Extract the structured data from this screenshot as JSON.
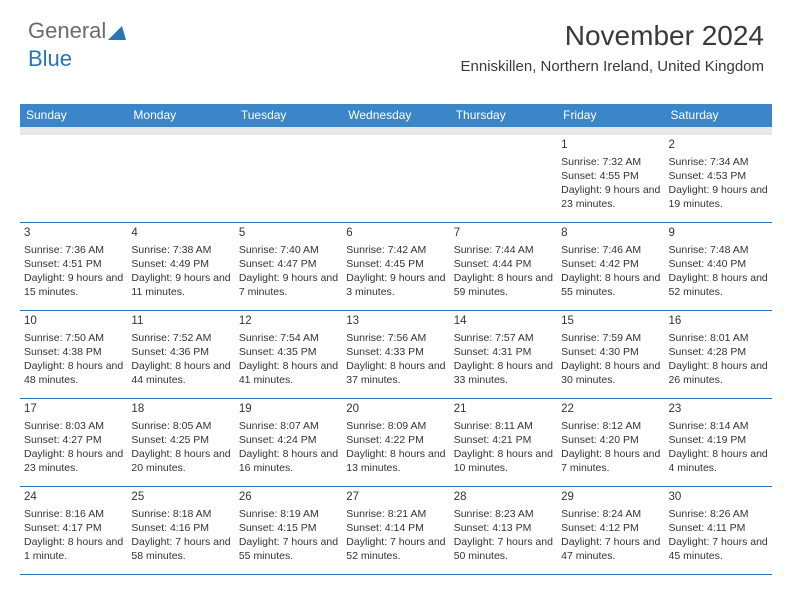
{
  "logo": {
    "text1": "General",
    "text2": "Blue"
  },
  "header": {
    "title": "November 2024",
    "subtitle": "Enniskillen, Northern Ireland, United Kingdom"
  },
  "colors": {
    "header_bg": "#3a86c8",
    "header_text": "#ffffff",
    "divider": "#2a74b8",
    "gap_bg": "#e7e7e7",
    "body_text": "#333333",
    "logo_gray": "#6b6b6b",
    "logo_blue": "#2a74b8"
  },
  "dow": [
    "Sunday",
    "Monday",
    "Tuesday",
    "Wednesday",
    "Thursday",
    "Friday",
    "Saturday"
  ],
  "weeks": [
    [
      null,
      null,
      null,
      null,
      null,
      {
        "n": "1",
        "sr": "7:32 AM",
        "ss": "4:55 PM",
        "dl": "9 hours and 23 minutes."
      },
      {
        "n": "2",
        "sr": "7:34 AM",
        "ss": "4:53 PM",
        "dl": "9 hours and 19 minutes."
      }
    ],
    [
      {
        "n": "3",
        "sr": "7:36 AM",
        "ss": "4:51 PM",
        "dl": "9 hours and 15 minutes."
      },
      {
        "n": "4",
        "sr": "7:38 AM",
        "ss": "4:49 PM",
        "dl": "9 hours and 11 minutes."
      },
      {
        "n": "5",
        "sr": "7:40 AM",
        "ss": "4:47 PM",
        "dl": "9 hours and 7 minutes."
      },
      {
        "n": "6",
        "sr": "7:42 AM",
        "ss": "4:45 PM",
        "dl": "9 hours and 3 minutes."
      },
      {
        "n": "7",
        "sr": "7:44 AM",
        "ss": "4:44 PM",
        "dl": "8 hours and 59 minutes."
      },
      {
        "n": "8",
        "sr": "7:46 AM",
        "ss": "4:42 PM",
        "dl": "8 hours and 55 minutes."
      },
      {
        "n": "9",
        "sr": "7:48 AM",
        "ss": "4:40 PM",
        "dl": "8 hours and 52 minutes."
      }
    ],
    [
      {
        "n": "10",
        "sr": "7:50 AM",
        "ss": "4:38 PM",
        "dl": "8 hours and 48 minutes."
      },
      {
        "n": "11",
        "sr": "7:52 AM",
        "ss": "4:36 PM",
        "dl": "8 hours and 44 minutes."
      },
      {
        "n": "12",
        "sr": "7:54 AM",
        "ss": "4:35 PM",
        "dl": "8 hours and 41 minutes."
      },
      {
        "n": "13",
        "sr": "7:56 AM",
        "ss": "4:33 PM",
        "dl": "8 hours and 37 minutes."
      },
      {
        "n": "14",
        "sr": "7:57 AM",
        "ss": "4:31 PM",
        "dl": "8 hours and 33 minutes."
      },
      {
        "n": "15",
        "sr": "7:59 AM",
        "ss": "4:30 PM",
        "dl": "8 hours and 30 minutes."
      },
      {
        "n": "16",
        "sr": "8:01 AM",
        "ss": "4:28 PM",
        "dl": "8 hours and 26 minutes."
      }
    ],
    [
      {
        "n": "17",
        "sr": "8:03 AM",
        "ss": "4:27 PM",
        "dl": "8 hours and 23 minutes."
      },
      {
        "n": "18",
        "sr": "8:05 AM",
        "ss": "4:25 PM",
        "dl": "8 hours and 20 minutes."
      },
      {
        "n": "19",
        "sr": "8:07 AM",
        "ss": "4:24 PM",
        "dl": "8 hours and 16 minutes."
      },
      {
        "n": "20",
        "sr": "8:09 AM",
        "ss": "4:22 PM",
        "dl": "8 hours and 13 minutes."
      },
      {
        "n": "21",
        "sr": "8:11 AM",
        "ss": "4:21 PM",
        "dl": "8 hours and 10 minutes."
      },
      {
        "n": "22",
        "sr": "8:12 AM",
        "ss": "4:20 PM",
        "dl": "8 hours and 7 minutes."
      },
      {
        "n": "23",
        "sr": "8:14 AM",
        "ss": "4:19 PM",
        "dl": "8 hours and 4 minutes."
      }
    ],
    [
      {
        "n": "24",
        "sr": "8:16 AM",
        "ss": "4:17 PM",
        "dl": "8 hours and 1 minute."
      },
      {
        "n": "25",
        "sr": "8:18 AM",
        "ss": "4:16 PM",
        "dl": "7 hours and 58 minutes."
      },
      {
        "n": "26",
        "sr": "8:19 AM",
        "ss": "4:15 PM",
        "dl": "7 hours and 55 minutes."
      },
      {
        "n": "27",
        "sr": "8:21 AM",
        "ss": "4:14 PM",
        "dl": "7 hours and 52 minutes."
      },
      {
        "n": "28",
        "sr": "8:23 AM",
        "ss": "4:13 PM",
        "dl": "7 hours and 50 minutes."
      },
      {
        "n": "29",
        "sr": "8:24 AM",
        "ss": "4:12 PM",
        "dl": "7 hours and 47 minutes."
      },
      {
        "n": "30",
        "sr": "8:26 AM",
        "ss": "4:11 PM",
        "dl": "7 hours and 45 minutes."
      }
    ]
  ],
  "labels": {
    "sunrise": "Sunrise: ",
    "sunset": "Sunset: ",
    "daylight": "Daylight: "
  }
}
